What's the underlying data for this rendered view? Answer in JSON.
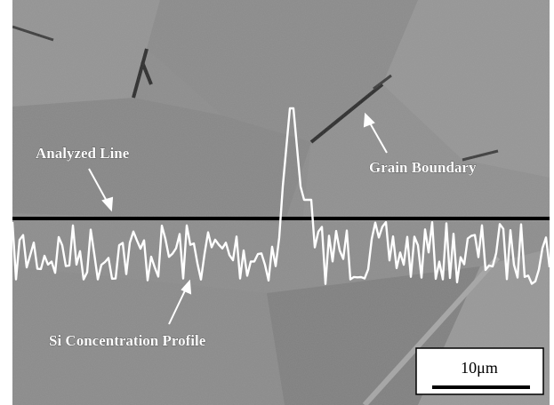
{
  "annotations": {
    "analyzed_line": "Analyzed Line",
    "grain_boundary": "Grain Boundary",
    "si_profile": "Si Concentration Profile"
  },
  "scale_bar": {
    "label": "10μm"
  }
}
